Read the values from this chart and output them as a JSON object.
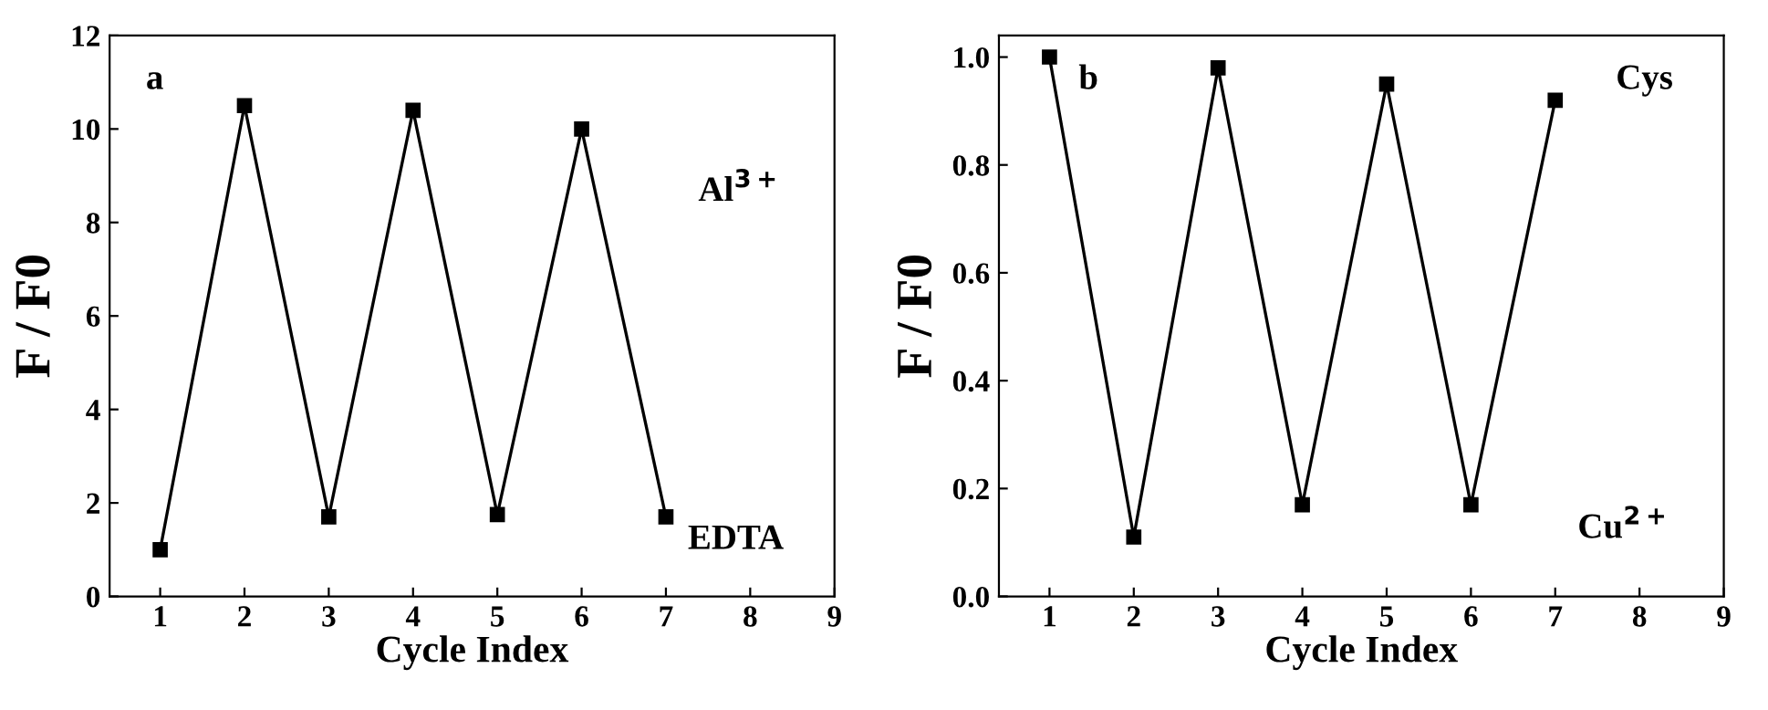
{
  "chart_data": [
    {
      "type": "line",
      "xlabel": "Cycle Index",
      "ylabel": "F / F0",
      "x": [
        1,
        2,
        3,
        4,
        5,
        6,
        7
      ],
      "series": [
        {
          "color": "#000000",
          "values": [
            1.0,
            10.5,
            1.7,
            10.4,
            1.75,
            10.0,
            1.7
          ]
        }
      ],
      "xlim": [
        0.4,
        9
      ],
      "xticks": [
        1,
        2,
        3,
        4,
        5,
        6,
        7,
        8,
        9
      ],
      "ylim": [
        0,
        12
      ],
      "yticks": [
        0,
        2,
        4,
        6,
        8,
        10,
        12
      ],
      "marker": "square",
      "line_style": "solid",
      "grid": false,
      "legend": false,
      "annotations": [
        "a",
        "Al$^{3+}$",
        "EDTA"
      ]
    },
    {
      "type": "line",
      "xlabel": "Cycle Index",
      "ylabel": "F / F0",
      "x": [
        1,
        2,
        3,
        4,
        5,
        6,
        7
      ],
      "series": [
        {
          "color": "#000000",
          "values": [
            1.0,
            0.11,
            0.98,
            0.17,
            0.95,
            0.17,
            0.92
          ]
        }
      ],
      "xlim": [
        0.4,
        9
      ],
      "xticks": [
        1,
        2,
        3,
        4,
        5,
        6,
        7,
        8,
        9
      ],
      "ylim": [
        0,
        1.04
      ],
      "yticks": [
        {
          "value": 0,
          "label": "0.0"
        },
        0.2,
        0.4,
        0.6,
        0.8,
        {
          "value": 1,
          "label": "1.0"
        }
      ],
      "marker": "square",
      "line_style": "solid",
      "grid": false,
      "legend": false,
      "annotations": [
        "b",
        "Cys",
        "Cu$^{2+}$"
      ]
    }
  ]
}
